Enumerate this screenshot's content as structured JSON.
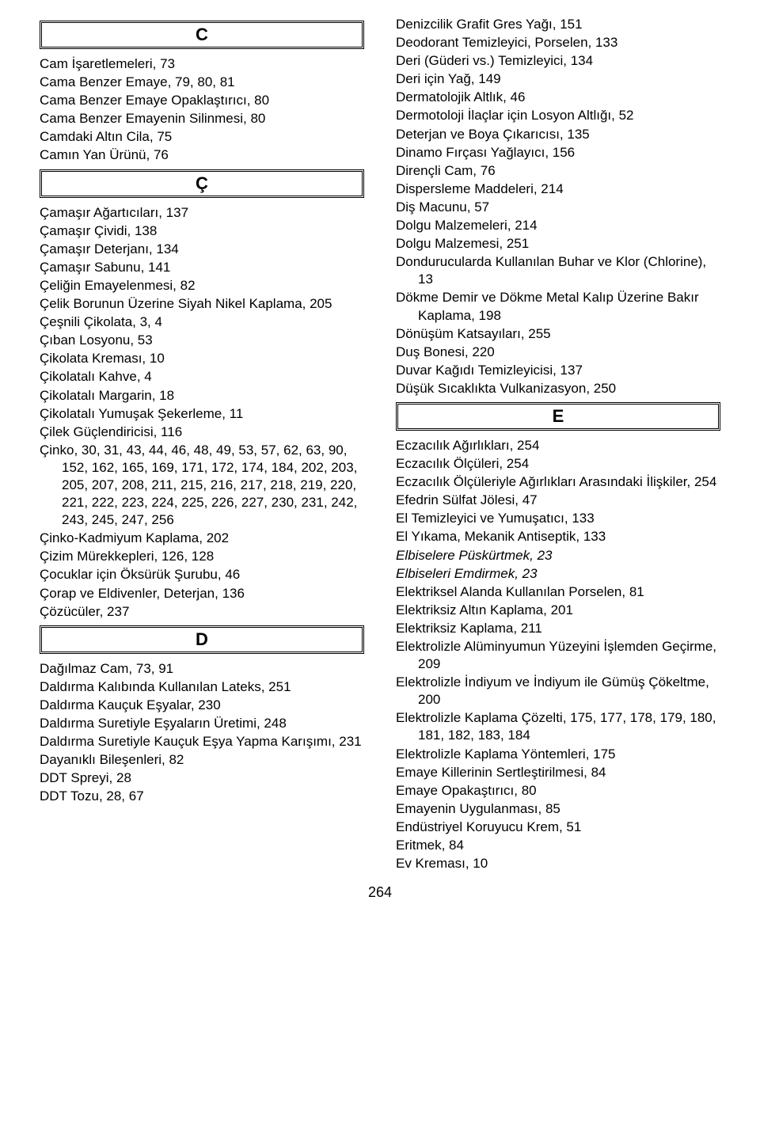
{
  "pageNumber": "264",
  "leftColumn": {
    "sections": [
      {
        "letter": "C",
        "entries": [
          {
            "text": "Cam İşaretlemeleri, 73"
          },
          {
            "text": "Cama Benzer Emaye, 79, 80, 81"
          },
          {
            "text": "Cama Benzer Emaye Opaklaştırıcı, 80"
          },
          {
            "text": "Cama Benzer Emayenin Silinmesi, 80"
          },
          {
            "text": "Camdaki Altın Cila, 75"
          },
          {
            "text": "Camın Yan Ürünü, 76"
          }
        ]
      },
      {
        "letter": "Ç",
        "entries": [
          {
            "text": "Çamaşır Ağartıcıları, 137"
          },
          {
            "text": "Çamaşır Çividi, 138"
          },
          {
            "text": "Çamaşır Deterjanı, 134"
          },
          {
            "text": "Çamaşır Sabunu, 141"
          },
          {
            "text": "Çeliğin Emayelenmesi, 82"
          },
          {
            "text": "Çelik Borunun Üzerine Siyah Nikel Kaplama, 205"
          },
          {
            "text": "Çeşnili Çikolata, 3, 4"
          },
          {
            "text": "Çıban Losyonu, 53"
          },
          {
            "text": "Çikolata Kreması, 10"
          },
          {
            "text": "Çikolatalı Kahve, 4"
          },
          {
            "text": "Çikolatalı Margarin, 18"
          },
          {
            "text": "Çikolatalı Yumuşak Şekerleme, 11"
          },
          {
            "text": "Çilek Güçlendiricisi, 116"
          },
          {
            "text": "Çinko, 30, 31, 43, 44, 46, 48, 49, 53, 57, 62, 63, 90, 152, 162, 165, 169, 171, 172, 174, 184, 202, 203, 205, 207, 208, 211, 215, 216, 217, 218, 219, 220, 221, 222, 223, 224, 225, 226, 227, 230, 231, 242, 243, 245, 247, 256"
          },
          {
            "text": "Çinko-Kadmiyum Kaplama, 202"
          },
          {
            "text": "Çizim Mürekkepleri, 126, 128"
          },
          {
            "text": "Çocuklar için Öksürük Şurubu, 46"
          },
          {
            "text": "Çorap ve Eldivenler, Deterjan, 136"
          },
          {
            "text": "Çözücüler, 237"
          }
        ]
      },
      {
        "letter": "D",
        "entries": [
          {
            "text": "Dağılmaz Cam, 73, 91"
          },
          {
            "text": "Daldırma Kalıbında Kullanılan Lateks, 251"
          },
          {
            "text": "Daldırma Kauçuk Eşyalar, 230"
          },
          {
            "text": "Daldırma Suretiyle Eşyaların Üretimi, 248"
          },
          {
            "text": "Daldırma Suretiyle Kauçuk Eşya Yapma Karışımı, 231"
          },
          {
            "text": "Dayanıklı Bileşenleri, 82"
          },
          {
            "text": "DDT Spreyi, 28"
          },
          {
            "text": "DDT Tozu, 28, 67"
          }
        ]
      }
    ]
  },
  "rightColumn": {
    "preEntries": [
      {
        "text": "Denizcilik Grafit Gres Yağı, 151"
      },
      {
        "text": "Deodorant Temizleyici, Porselen, 133"
      },
      {
        "text": "Deri (Güderi vs.) Temizleyici, 134"
      },
      {
        "text": "Deri için Yağ, 149"
      },
      {
        "text": "Dermatolojik Altlık, 46"
      },
      {
        "text": "Dermotoloji İlaçlar için Losyon Altlığı, 52"
      },
      {
        "text": "Deterjan ve Boya Çıkarıcısı, 135"
      },
      {
        "text": "Dinamo Fırçası Yağlayıcı, 156"
      },
      {
        "text": "Dirençli Cam, 76"
      },
      {
        "text": "Dispersleme Maddeleri, 214"
      },
      {
        "text": "Diş Macunu, 57"
      },
      {
        "text": "Dolgu Malzemeleri, 214"
      },
      {
        "text": "Dolgu Malzemesi, 251"
      },
      {
        "text": "Dondurucularda Kullanılan Buhar ve Klor (Chlorine), 13"
      },
      {
        "text": "Dökme Demir ve Dökme Metal Kalıp Üzerine Bakır Kaplama, 198"
      },
      {
        "text": "Dönüşüm Katsayıları, 255"
      },
      {
        "text": "Duş Bonesi, 220"
      },
      {
        "text": "Duvar Kağıdı Temizleyicisi, 137"
      },
      {
        "text": "Düşük Sıcaklıkta Vulkanizasyon, 250"
      }
    ],
    "sections": [
      {
        "letter": "E",
        "entries": [
          {
            "text": "Eczacılık Ağırlıkları, 254"
          },
          {
            "text": "Eczacılık Ölçüleri, 254"
          },
          {
            "text": "Eczacılık Ölçüleriyle Ağırlıkları Arasındaki İlişkiler, 254"
          },
          {
            "text": "Efedrin Sülfat Jölesi, 47"
          },
          {
            "text": "El Temizleyici ve Yumuşatıcı, 133"
          },
          {
            "text": "El Yıkama, Mekanik Antiseptik, 133"
          },
          {
            "text": "Elbiselere Püskürtmek, 23",
            "italic": true
          },
          {
            "text": "Elbiseleri Emdirmek, 23",
            "italic": true
          },
          {
            "text": "Elektriksel Alanda Kullanılan Porselen, 81"
          },
          {
            "text": "Elektriksiz Altın Kaplama, 201"
          },
          {
            "text": "Elektriksiz Kaplama, 211"
          },
          {
            "text": "Elektrolizle Alüminyumun Yüzeyini İşlemden Geçirme, 209"
          },
          {
            "text": "Elektrolizle İndiyum ve İndiyum ile Gümüş Çökeltme, 200"
          },
          {
            "text": "Elektrolizle Kaplama Çözelti, 175, 177, 178, 179, 180, 181, 182, 183, 184"
          },
          {
            "text": "Elektrolizle Kaplama Yöntemleri, 175"
          },
          {
            "text": "Emaye Killerinin Sertleştirilmesi, 84"
          },
          {
            "text": "Emaye Opakaştırıcı, 80"
          },
          {
            "text": "Emayenin Uygulanması, 85"
          },
          {
            "text": "Endüstriyel Koruyucu Krem, 51"
          },
          {
            "text": "Eritmek, 84"
          },
          {
            "text": "Ev Kreması, 10"
          }
        ]
      }
    ]
  }
}
